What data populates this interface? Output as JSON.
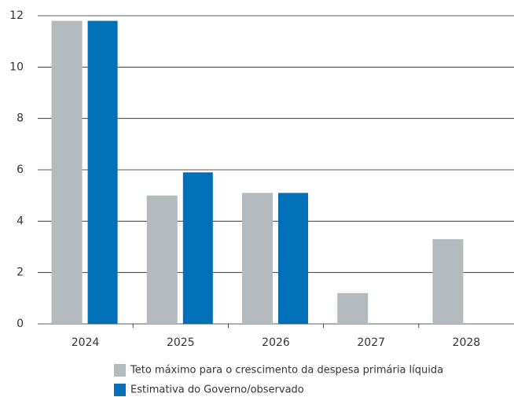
{
  "chart_data": {
    "type": "bar",
    "categories": [
      "2024",
      "2025",
      "2026",
      "2027",
      "2028"
    ],
    "series": [
      {
        "name": "Teto máximo para o crescimento da despesa primária líquida",
        "color": "#b3bbbe",
        "values": [
          11.8,
          5.0,
          5.1,
          1.2,
          3.3
        ]
      },
      {
        "name": "Estimativa do Governo/observado",
        "color": "#0070b8",
        "values": [
          11.8,
          5.9,
          5.1,
          null,
          null
        ]
      }
    ],
    "ylim": [
      0,
      12
    ],
    "yticks": [
      0,
      2,
      4,
      6,
      8,
      10,
      12
    ],
    "grid": true
  }
}
